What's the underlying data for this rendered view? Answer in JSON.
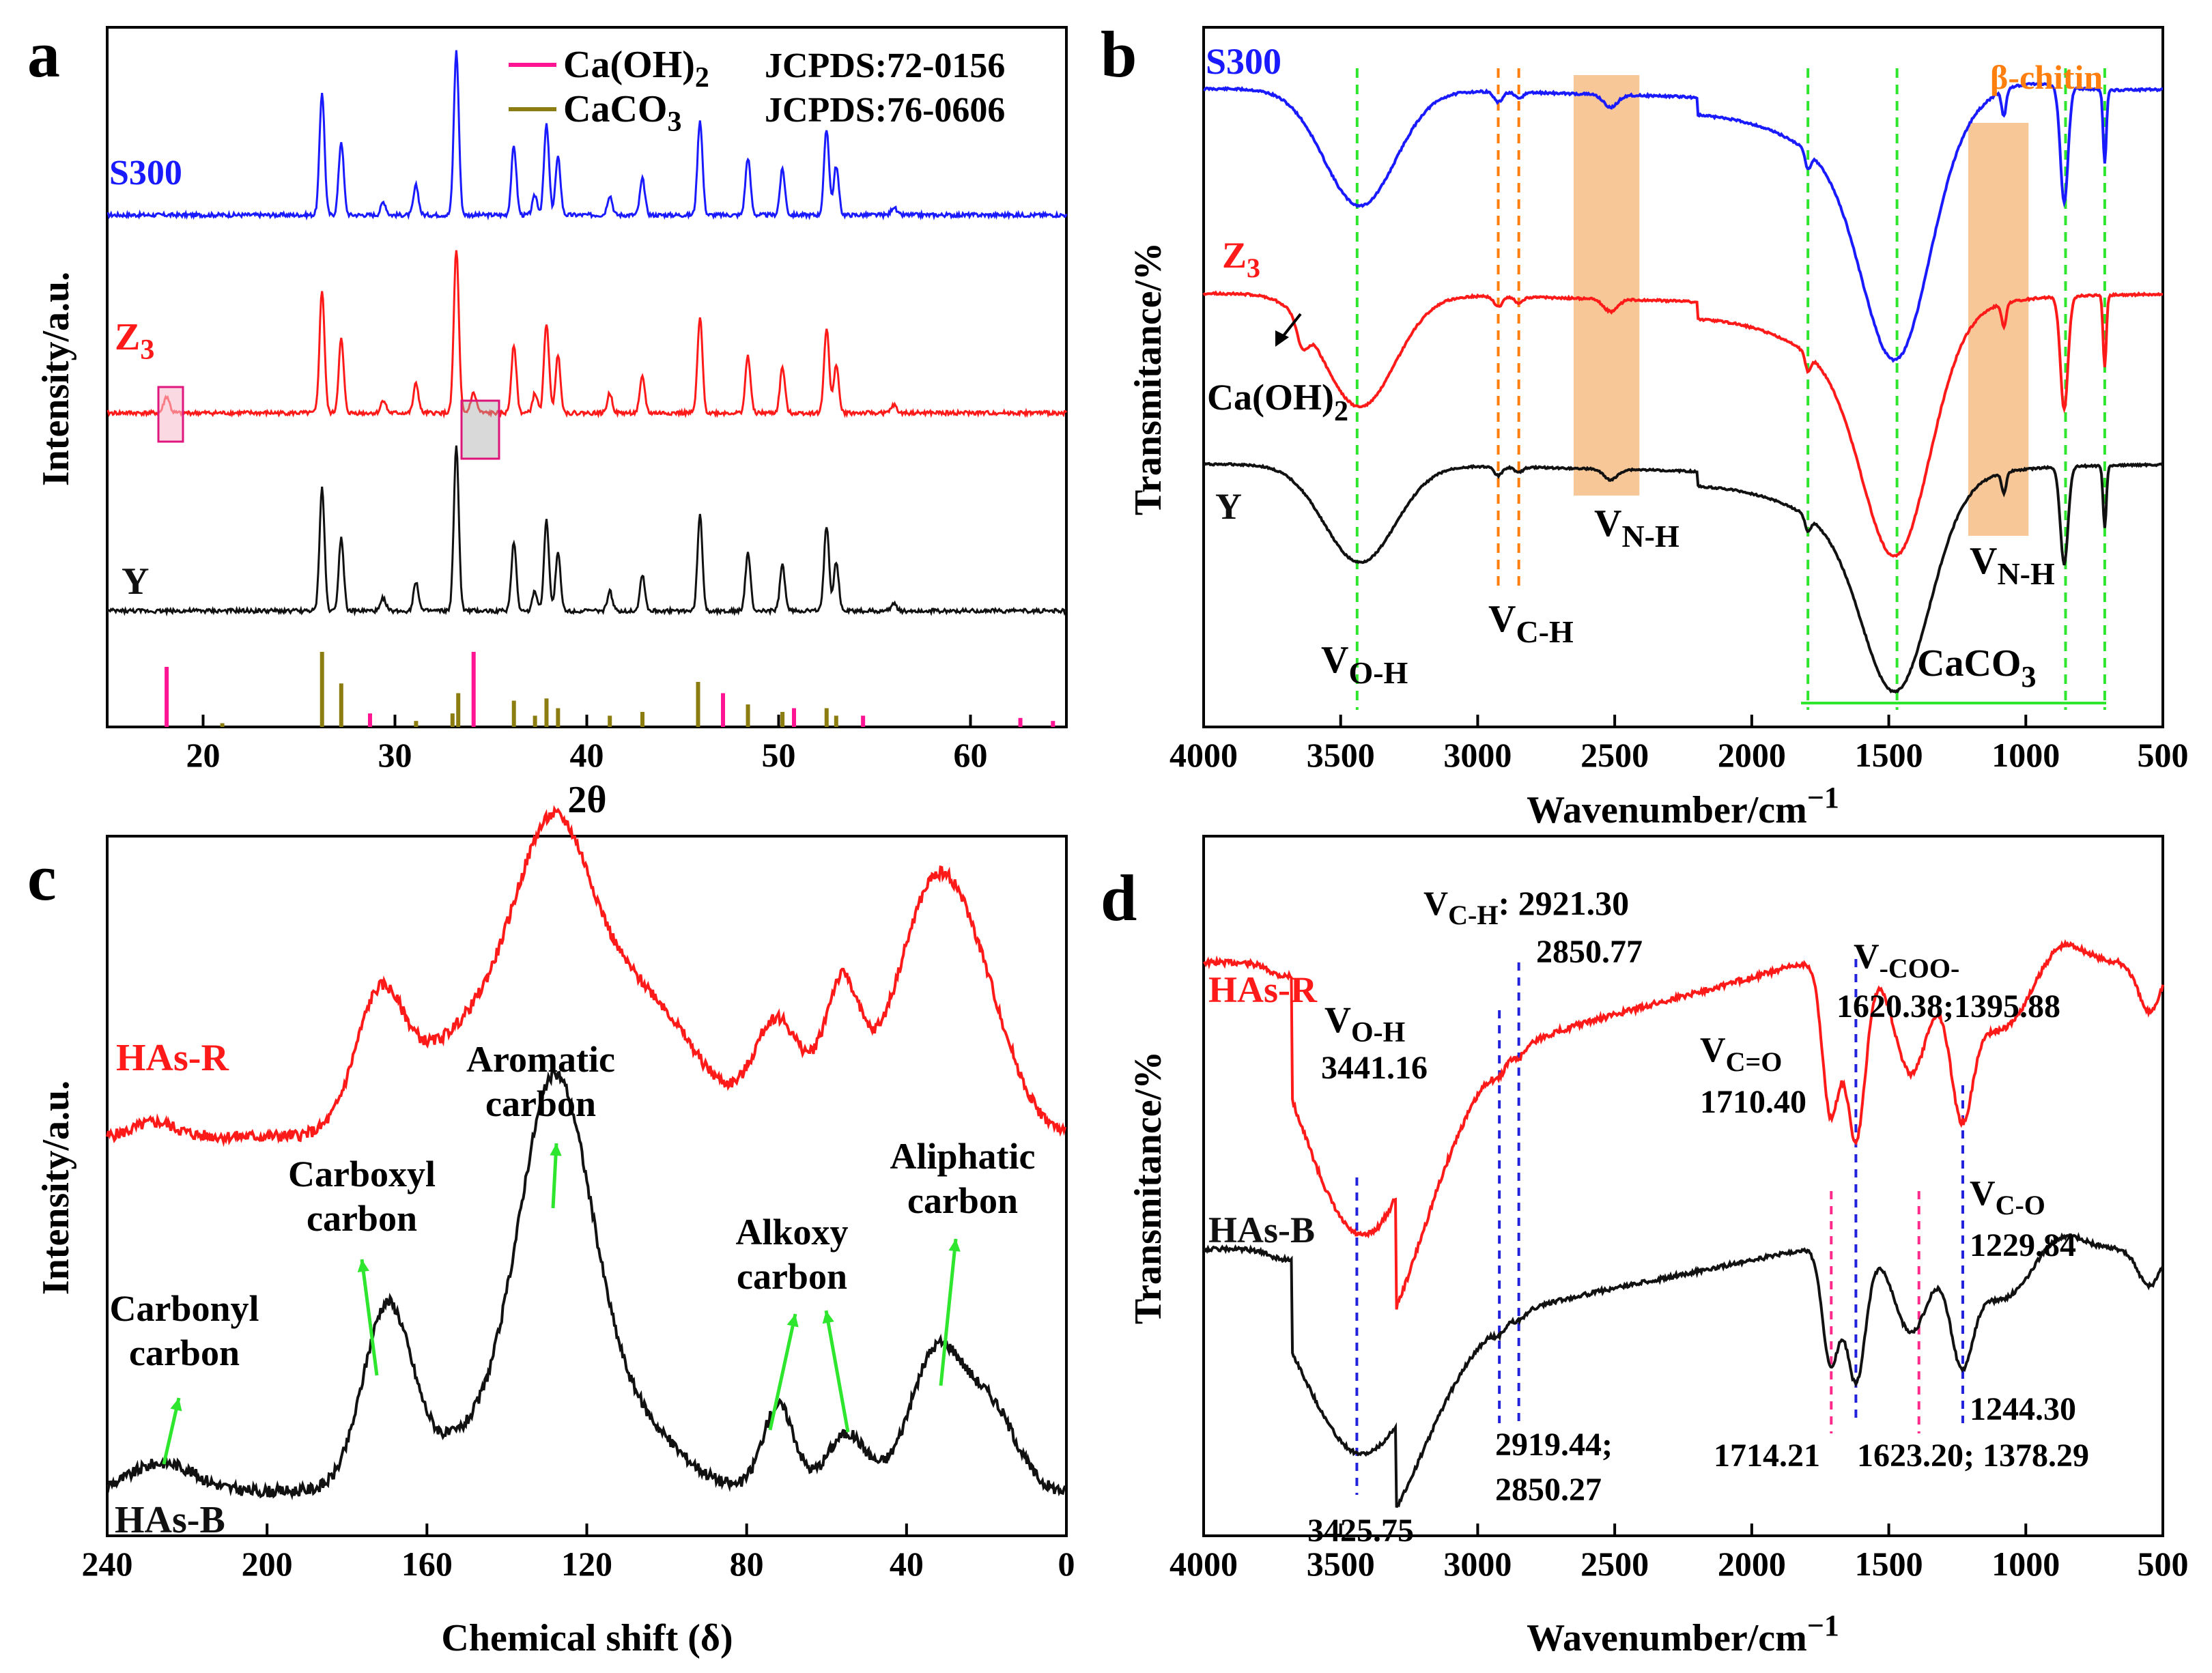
{
  "colors": {
    "blue": "#1a1aff",
    "red": "#ff1a1a",
    "black": "#111111",
    "pink": "#ff1493",
    "olive": "#8b7d10",
    "green": "#2ee62e",
    "orange": "#ff7f0e",
    "orangeFill": "#f7c797",
    "navy": "#2222dd",
    "magenta": "#ff2a8a"
  },
  "chart_data": [
    {
      "id": "a",
      "type": "line",
      "panel_label": "a",
      "xlabel": "2θ",
      "ylabel": "Intensity/a.u.",
      "xlim": [
        15,
        65
      ],
      "xticks": [
        "20",
        "30",
        "40",
        "50",
        "60"
      ],
      "xtick_values": [
        20,
        30,
        40,
        50,
        60
      ],
      "legend": [
        {
          "name": "Ca(OH)",
          "sub": "2",
          "ref": "JCPDS:72-0156",
          "color": "#ff1493"
        },
        {
          "name": "CaCO",
          "sub": "3",
          "ref": "JCPDS:76-0606",
          "color": "#8b7d10"
        }
      ],
      "series_labels": [
        {
          "main": "S300",
          "sub": "",
          "color": "#1a1aff"
        },
        {
          "main": "Z",
          "sub": "3",
          "color": "#ff1a1a"
        },
        {
          "main": "Y",
          "sub": "",
          "color": "#111111"
        }
      ],
      "peaks": [
        [
          26.2,
          0.75
        ],
        [
          27.2,
          0.45
        ],
        [
          29.4,
          0.08
        ],
        [
          31.1,
          0.18
        ],
        [
          33.2,
          1.0
        ],
        [
          36.2,
          0.42
        ],
        [
          37.3,
          0.12
        ],
        [
          37.9,
          0.55
        ],
        [
          38.5,
          0.35
        ],
        [
          41.2,
          0.12
        ],
        [
          42.9,
          0.22
        ],
        [
          45.9,
          0.58
        ],
        [
          48.4,
          0.35
        ],
        [
          50.2,
          0.28
        ],
        [
          52.5,
          0.52
        ],
        [
          53.0,
          0.3
        ],
        [
          56.0,
          0.05
        ]
      ],
      "ref_caoh2": [
        [
          18.1,
          0.8
        ],
        [
          28.7,
          0.18
        ],
        [
          34.1,
          1.0
        ],
        [
          47.1,
          0.45
        ],
        [
          50.8,
          0.25
        ],
        [
          54.4,
          0.15
        ],
        [
          62.6,
          0.12
        ],
        [
          64.3,
          0.08
        ]
      ],
      "ref_caco3": [
        [
          21.0,
          0.05
        ],
        [
          26.2,
          1.0
        ],
        [
          27.2,
          0.58
        ],
        [
          31.1,
          0.08
        ],
        [
          33.0,
          0.18
        ],
        [
          33.3,
          0.45
        ],
        [
          36.2,
          0.35
        ],
        [
          37.3,
          0.15
        ],
        [
          37.9,
          0.38
        ],
        [
          38.5,
          0.25
        ],
        [
          41.2,
          0.15
        ],
        [
          42.9,
          0.2
        ],
        [
          45.8,
          0.6
        ],
        [
          48.4,
          0.3
        ],
        [
          50.2,
          0.2
        ],
        [
          52.5,
          0.25
        ],
        [
          53.0,
          0.15
        ]
      ]
    },
    {
      "id": "b",
      "type": "line",
      "panel_label": "b",
      "xlabel": "Wavenumber/cm",
      "xlabel_sup": "−1",
      "ylabel": "Transmitance/%",
      "xlim": [
        4000,
        500
      ],
      "xticks": [
        "4000",
        "3500",
        "3000",
        "2500",
        "2000",
        "1500",
        "1000",
        "500"
      ],
      "xtick_values": [
        4000,
        3500,
        3000,
        2500,
        2000,
        1500,
        1000,
        500
      ],
      "series_labels": [
        {
          "main": "S300",
          "sub": "",
          "color": "#1a1aff"
        },
        {
          "main": "Z",
          "sub": "3",
          "color": "#ff1a1a"
        },
        {
          "main": "Y",
          "sub": "",
          "color": "#111111"
        }
      ],
      "annotations": {
        "beta_chitin": "β-chitin",
        "ca_oh2": "Ca(OH)",
        "ca_oh2_sub": "2",
        "v_oh": "V",
        "v_oh_sub": "O-H",
        "v_ch": "V",
        "v_ch_sub": "C-H",
        "v_nh1": "V",
        "v_nh1_sub": "N-H",
        "v_nh2": "V",
        "v_nh2_sub": "N-H",
        "caco3": "CaCO",
        "caco3_sub": "3"
      },
      "marker_lines_green": [
        3440,
        1795,
        1470,
        855,
        712
      ],
      "marker_lines_orange": [
        2925,
        2850
      ],
      "highlight_bands": [
        [
          2650,
          2410
        ],
        [
          1210,
          990
        ]
      ]
    },
    {
      "id": "c",
      "type": "line",
      "panel_label": "c",
      "xlabel": "Chemical shift (δ)",
      "ylabel": "Intensity/a.u.",
      "xlim": [
        240,
        0
      ],
      "xticks": [
        "240",
        "200",
        "160",
        "120",
        "80",
        "40",
        "0"
      ],
      "xtick_values": [
        240,
        200,
        160,
        120,
        80,
        40,
        0
      ],
      "series_labels": [
        {
          "main": "HAs-R",
          "sub": "",
          "color": "#ff1a1a"
        },
        {
          "main": "HAs-B",
          "sub": "",
          "color": "#111111"
        }
      ],
      "annotations": {
        "carbonyl_1": "Carbonyl",
        "carbonyl_2": "carbon",
        "carboxyl_1": "Carboxyl",
        "carboxyl_2": "carbon",
        "aromatic_1": "Aromatic",
        "aromatic_2": "carbon",
        "alkoxy_1": "Alkoxy",
        "alkoxy_2": "carbon",
        "aliphatic_1": "Aliphatic",
        "aliphatic_2": "carbon"
      }
    },
    {
      "id": "d",
      "type": "line",
      "panel_label": "d",
      "xlabel": "Wavenumber/cm",
      "xlabel_sup": "−1",
      "ylabel": "Transmitance/%",
      "xlim": [
        4000,
        500
      ],
      "xticks": [
        "4000",
        "3500",
        "3000",
        "2500",
        "2000",
        "1500",
        "1000",
        "500"
      ],
      "xtick_values": [
        4000,
        3500,
        3000,
        2500,
        2000,
        1500,
        1000,
        500
      ],
      "series_labels": [
        {
          "main": "HAs-R",
          "sub": "",
          "color": "#ff1a1a"
        },
        {
          "main": "HAs-B",
          "sub": "",
          "color": "#111111"
        }
      ],
      "annotations": {
        "v_ch_r": "V",
        "v_ch_r_sub": "C-H",
        "v_ch_r_val1": ": 2921.30",
        "v_ch_r_val2": "2850.77",
        "v_oh_r": "V",
        "v_oh_r_sub": "O-H",
        "v_oh_r_val": "3441.16",
        "v_co_r": "V",
        "v_co_r_sub": "C=O",
        "v_co_r_val": "1710.40",
        "v_coo_r": "V",
        "v_coo_r_sub": "-COO-",
        "v_coo_r_val": "1620.38;1395.88",
        "v_c_o_r": "V",
        "v_c_o_r_sub": "C-O",
        "v_c_o_r_val": "1229.84",
        "b_1244": "1244.30",
        "b_2919": "2919.44;",
        "b_2850": "2850.27",
        "b_1714": "1714.21",
        "b_1623": "1623.20; 1378.29",
        "b_3425": "3425.75"
      },
      "marker_lines_blue": [
        3441,
        2921,
        2850,
        1620,
        1230
      ],
      "marker_lines_magenta": [
        1710,
        1390
      ]
    }
  ]
}
